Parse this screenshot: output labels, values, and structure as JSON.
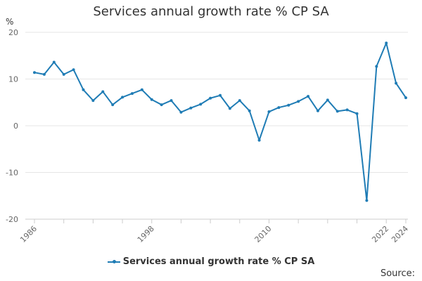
{
  "chart_data": {
    "type": "line",
    "title": "Services annual growth rate % CP SA",
    "ylabel": "%",
    "xlabel": "",
    "ylim": [
      -20,
      20
    ],
    "yticks": [
      20,
      10,
      0,
      -10,
      -20
    ],
    "xlim": [
      1986,
      2024
    ],
    "xticks": [
      1986,
      1998,
      2010,
      2022,
      2024
    ],
    "grid": true,
    "legend_position": "bottom",
    "series": [
      {
        "name": "Services annual growth rate % CP SA",
        "color": "#1f7cb5",
        "x": [
          1986,
          1987,
          1988,
          1989,
          1990,
          1991,
          1992,
          1993,
          1994,
          1995,
          1996,
          1997,
          1998,
          1999,
          2000,
          2001,
          2002,
          2003,
          2004,
          2005,
          2006,
          2007,
          2008,
          2009,
          2010,
          2011,
          2012,
          2013,
          2014,
          2015,
          2016,
          2017,
          2018,
          2019,
          2020,
          2021,
          2022,
          2023,
          2024
        ],
        "values": [
          11.4,
          11.0,
          13.6,
          11.0,
          12.0,
          7.7,
          5.4,
          7.3,
          4.5,
          6.1,
          6.9,
          7.7,
          5.6,
          4.5,
          5.4,
          2.9,
          3.8,
          4.6,
          5.9,
          6.5,
          3.7,
          5.4,
          3.2,
          -3.1,
          3.0,
          3.9,
          4.4,
          5.2,
          6.3,
          3.2,
          5.5,
          3.1,
          3.4,
          2.6,
          -16.0,
          12.7,
          17.7,
          9.1,
          6.0
        ]
      }
    ]
  },
  "legend": {
    "label": "Services annual growth rate % CP SA"
  },
  "source": {
    "label": "Source:"
  }
}
